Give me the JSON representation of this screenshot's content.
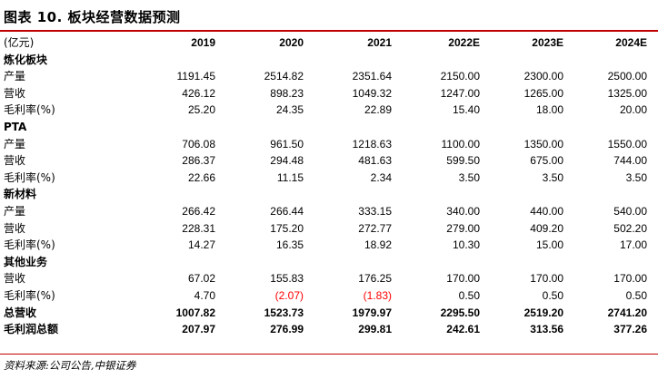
{
  "title": "图表 10. 板块经营数据预测",
  "header": {
    "unit": "(亿元)",
    "years": [
      "2019",
      "2020",
      "2021",
      "2022E",
      "2023E",
      "2024E"
    ]
  },
  "sections": [
    {
      "name": "炼化板块",
      "rows": [
        {
          "label": "产量",
          "values": [
            "1191.45",
            "2514.82",
            "2351.64",
            "2150.00",
            "2300.00",
            "2500.00"
          ]
        },
        {
          "label": "营收",
          "values": [
            "426.12",
            "898.23",
            "1049.32",
            "1247.00",
            "1265.00",
            "1325.00"
          ]
        },
        {
          "label": "毛利率(%)",
          "values": [
            "25.20",
            "24.35",
            "22.89",
            "15.40",
            "18.00",
            "20.00"
          ]
        }
      ]
    },
    {
      "name": "PTA",
      "rows": [
        {
          "label": "产量",
          "values": [
            "706.08",
            "961.50",
            "1218.63",
            "1100.00",
            "1350.00",
            "1550.00"
          ]
        },
        {
          "label": "营收",
          "values": [
            "286.37",
            "294.48",
            "481.63",
            "599.50",
            "675.00",
            "744.00"
          ]
        },
        {
          "label": "毛利率(%)",
          "values": [
            "22.66",
            "11.15",
            "2.34",
            "3.50",
            "3.50",
            "3.50"
          ]
        }
      ]
    },
    {
      "name": "新材料",
      "rows": [
        {
          "label": "产量",
          "values": [
            "266.42",
            "266.44",
            "333.15",
            "340.00",
            "440.00",
            "540.00"
          ]
        },
        {
          "label": "营收",
          "values": [
            "228.31",
            "175.20",
            "272.77",
            "279.00",
            "409.20",
            "502.20"
          ]
        },
        {
          "label": "毛利率(%)",
          "values": [
            "14.27",
            "16.35",
            "18.92",
            "10.30",
            "15.00",
            "17.00"
          ]
        }
      ]
    },
    {
      "name": "其他业务",
      "rows": [
        {
          "label": "营收",
          "values": [
            "67.02",
            "155.83",
            "176.25",
            "170.00",
            "170.00",
            "170.00"
          ]
        },
        {
          "label": "毛利率(%)",
          "values": [
            "4.70",
            "(2.07)",
            "(1.83)",
            "0.50",
            "0.50",
            "0.50"
          ]
        }
      ]
    }
  ],
  "totals": [
    {
      "label": "总营收",
      "values": [
        "1007.82",
        "1523.73",
        "1979.97",
        "2295.50",
        "2519.20",
        "2741.20"
      ]
    },
    {
      "label": "毛利润总额",
      "values": [
        "207.97",
        "276.99",
        "299.81",
        "242.61",
        "313.56",
        "377.26"
      ]
    }
  ],
  "source": "资料来源:公司公告,中银证券",
  "colors": {
    "rule": "#c00000",
    "negative": "#ff0000"
  }
}
